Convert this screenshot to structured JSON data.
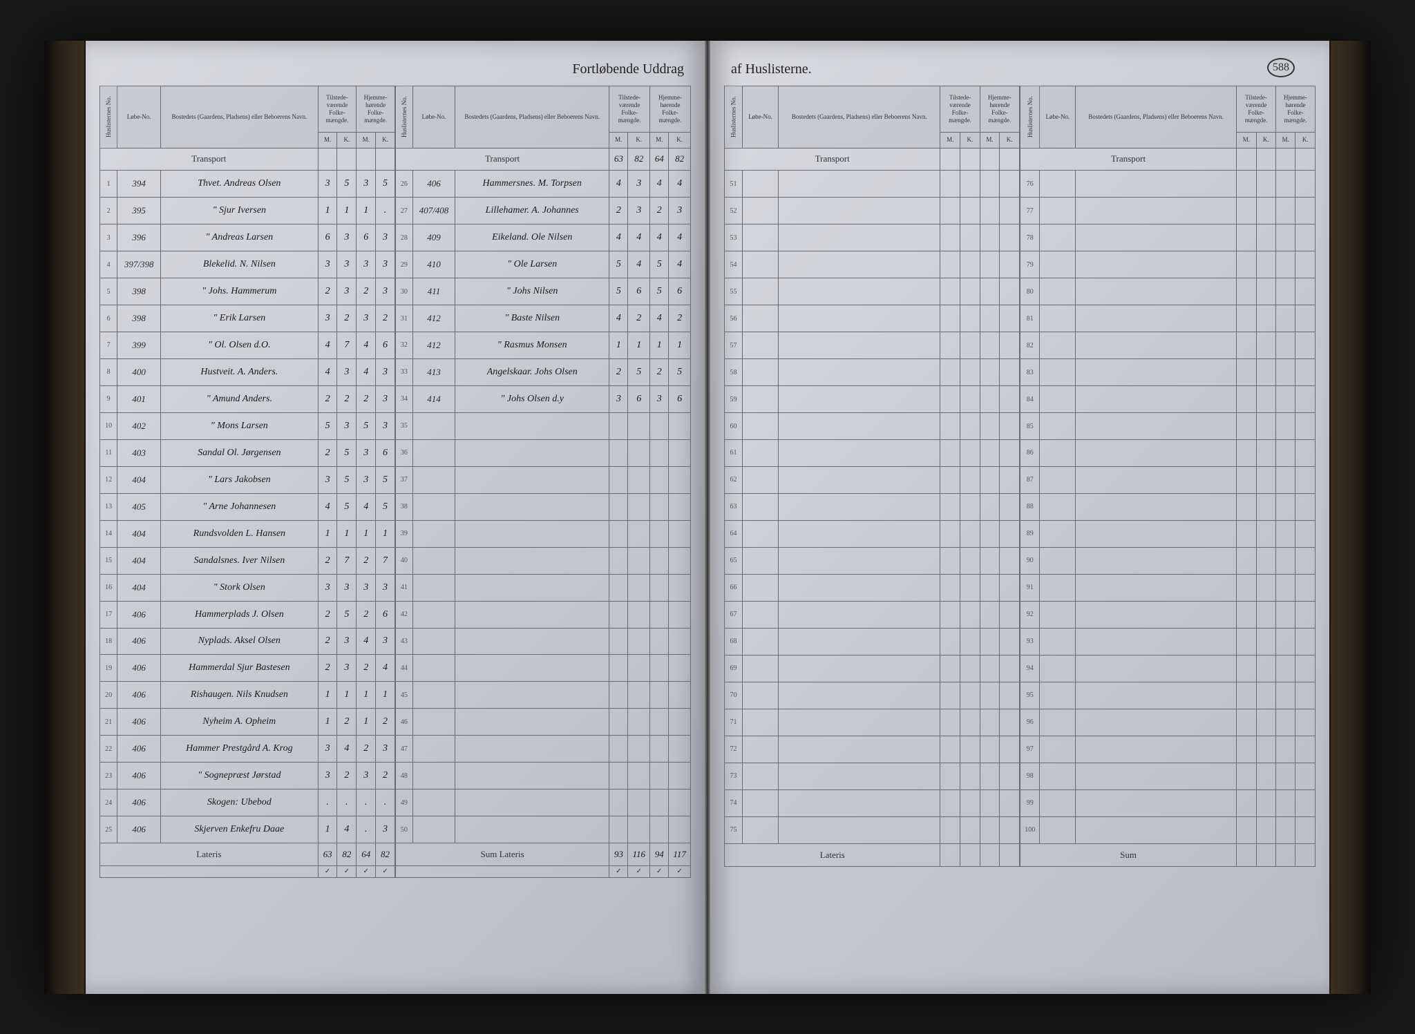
{
  "page_number": "588",
  "header_left": "Fortløbende Uddrag",
  "header_right": "af Huslisterne.",
  "column_headers": {
    "huslisternes": "Huslisternes No.",
    "lobe_no": "Løbe-No.",
    "bostedes": "Bostedets (Gaardens, Pladsens) eller Beboerens Navn.",
    "tilstede": "Tilstede-værende Folke-mængde.",
    "hjemme": "Hjemme-hørende Folke-mængde.",
    "m": "M.",
    "k": "K."
  },
  "transport_label": "Transport",
  "lateris_label": "Lateris",
  "sum_label": "Sum",
  "left_block1": {
    "transport": [
      "",
      "",
      "",
      ""
    ],
    "rows": [
      {
        "n": "1",
        "lobe": "394",
        "place": "Thvet. Andreas Olsen",
        "m1": "3",
        "k1": "5",
        "m2": "3",
        "k2": "5"
      },
      {
        "n": "2",
        "lobe": "395",
        "place": "\"   Sjur Iversen",
        "m1": "1",
        "k1": "1",
        "m2": "1",
        "k2": "."
      },
      {
        "n": "3",
        "lobe": "396",
        "place": "\"   Andreas Larsen",
        "m1": "6",
        "k1": "3",
        "m2": "6",
        "k2": "3"
      },
      {
        "n": "4",
        "lobe": "397/398",
        "place": "Blekelid.  N. Nilsen",
        "m1": "3",
        "k1": "3",
        "m2": "3",
        "k2": "3"
      },
      {
        "n": "5",
        "lobe": "398",
        "place": "\"   Johs. Hammerum",
        "m1": "2",
        "k1": "3",
        "m2": "2",
        "k2": "3"
      },
      {
        "n": "6",
        "lobe": "398",
        "place": "\"   Erik Larsen",
        "m1": "3",
        "k1": "2",
        "m2": "3",
        "k2": "2"
      },
      {
        "n": "7",
        "lobe": "399",
        "place": "\"   Ol. Olsen d.O.",
        "m1": "4",
        "k1": "7",
        "m2": "4",
        "k2": "6"
      },
      {
        "n": "8",
        "lobe": "400",
        "place": "Hustveit.  A. Anders.",
        "m1": "4",
        "k1": "3",
        "m2": "4",
        "k2": "3"
      },
      {
        "n": "9",
        "lobe": "401",
        "place": "\"   Amund Anders.",
        "m1": "2",
        "k1": "2",
        "m2": "2",
        "k2": "3"
      },
      {
        "n": "10",
        "lobe": "402",
        "place": "\"   Mons Larsen",
        "m1": "5",
        "k1": "3",
        "m2": "5",
        "k2": "3"
      },
      {
        "n": "11",
        "lobe": "403",
        "place": "Sandal  Ol. Jørgensen",
        "m1": "2",
        "k1": "5",
        "m2": "3",
        "k2": "6"
      },
      {
        "n": "12",
        "lobe": "404",
        "place": "\"   Lars Jakobsen",
        "m1": "3",
        "k1": "5",
        "m2": "3",
        "k2": "5"
      },
      {
        "n": "13",
        "lobe": "405",
        "place": "\"   Arne Johannesen",
        "m1": "4",
        "k1": "5",
        "m2": "4",
        "k2": "5"
      },
      {
        "n": "14",
        "lobe": "404",
        "place": "Rundsvolden L. Hansen",
        "m1": "1",
        "k1": "1",
        "m2": "1",
        "k2": "1"
      },
      {
        "n": "15",
        "lobe": "404",
        "place": "Sandalsnes. Iver Nilsen",
        "m1": "2",
        "k1": "7",
        "m2": "2",
        "k2": "7"
      },
      {
        "n": "16",
        "lobe": "404",
        "place": "\"   Stork Olsen",
        "m1": "3",
        "k1": "3",
        "m2": "3",
        "k2": "3"
      },
      {
        "n": "17",
        "lobe": "406",
        "place": "Hammerplads J. Olsen",
        "m1": "2",
        "k1": "5",
        "m2": "2",
        "k2": "6"
      },
      {
        "n": "18",
        "lobe": "406",
        "place": "Nyplads. Aksel Olsen",
        "m1": "2",
        "k1": "3",
        "m2": "4",
        "k2": "3"
      },
      {
        "n": "19",
        "lobe": "406",
        "place": "Hammerdal Sjur Bastesen",
        "m1": "2",
        "k1": "3",
        "m2": "2",
        "k2": "4"
      },
      {
        "n": "20",
        "lobe": "406",
        "place": "Rishaugen. Nils Knudsen",
        "m1": "1",
        "k1": "1",
        "m2": "1",
        "k2": "1"
      },
      {
        "n": "21",
        "lobe": "406",
        "place": "Nyheim A. Opheim",
        "m1": "1",
        "k1": "2",
        "m2": "1",
        "k2": "2"
      },
      {
        "n": "22",
        "lobe": "406",
        "place": "Hammer Prestgård A. Krog",
        "m1": "3",
        "k1": "4",
        "m2": "2",
        "k2": "3"
      },
      {
        "n": "23",
        "lobe": "406",
        "place": "\"   Sognepræst Jørstad",
        "m1": "3",
        "k1": "2",
        "m2": "3",
        "k2": "2"
      },
      {
        "n": "24",
        "lobe": "406",
        "place": "Skogen: Ubebod",
        "m1": ".",
        "k1": ".",
        "m2": ".",
        "k2": "."
      },
      {
        "n": "25",
        "lobe": "406",
        "place": "Skjerven Enkefru Daae",
        "m1": "1",
        "k1": "4",
        "m2": ".",
        "k2": "3"
      }
    ],
    "lateris": [
      "63",
      "82",
      "64",
      "82"
    ]
  },
  "left_block2": {
    "transport": [
      "63",
      "82",
      "64",
      "82"
    ],
    "rows": [
      {
        "n": "26",
        "lobe": "406",
        "place": "Hammersnes. M. Torpsen",
        "m1": "4",
        "k1": "3",
        "m2": "4",
        "k2": "4"
      },
      {
        "n": "27",
        "lobe": "407/408",
        "place": "Lillehamer. A. Johannes",
        "m1": "2",
        "k1": "3",
        "m2": "2",
        "k2": "3"
      },
      {
        "n": "28",
        "lobe": "409",
        "place": "Eikeland. Ole Nilsen",
        "m1": "4",
        "k1": "4",
        "m2": "4",
        "k2": "4"
      },
      {
        "n": "29",
        "lobe": "410",
        "place": "\"   Ole Larsen",
        "m1": "5",
        "k1": "4",
        "m2": "5",
        "k2": "4"
      },
      {
        "n": "30",
        "lobe": "411",
        "place": "\"   Johs Nilsen",
        "m1": "5",
        "k1": "6",
        "m2": "5",
        "k2": "6"
      },
      {
        "n": "31",
        "lobe": "412",
        "place": "\"   Baste Nilsen",
        "m1": "4",
        "k1": "2",
        "m2": "4",
        "k2": "2"
      },
      {
        "n": "32",
        "lobe": "412",
        "place": "\"   Rasmus Monsen",
        "m1": "1",
        "k1": "1",
        "m2": "1",
        "k2": "1"
      },
      {
        "n": "33",
        "lobe": "413",
        "place": "Angelskaar. Johs Olsen",
        "m1": "2",
        "k1": "5",
        "m2": "2",
        "k2": "5"
      },
      {
        "n": "34",
        "lobe": "414",
        "place": "\"   Johs Olsen d.y",
        "m1": "3",
        "k1": "6",
        "m2": "3",
        "k2": "6"
      },
      {
        "n": "35",
        "lobe": "",
        "place": "",
        "m1": "",
        "k1": "",
        "m2": "",
        "k2": ""
      },
      {
        "n": "36",
        "lobe": "",
        "place": "",
        "m1": "",
        "k1": "",
        "m2": "",
        "k2": ""
      },
      {
        "n": "37",
        "lobe": "",
        "place": "",
        "m1": "",
        "k1": "",
        "m2": "",
        "k2": ""
      },
      {
        "n": "38",
        "lobe": "",
        "place": "",
        "m1": "",
        "k1": "",
        "m2": "",
        "k2": ""
      },
      {
        "n": "39",
        "lobe": "",
        "place": "",
        "m1": "",
        "k1": "",
        "m2": "",
        "k2": ""
      },
      {
        "n": "40",
        "lobe": "",
        "place": "",
        "m1": "",
        "k1": "",
        "m2": "",
        "k2": ""
      },
      {
        "n": "41",
        "lobe": "",
        "place": "",
        "m1": "",
        "k1": "",
        "m2": "",
        "k2": ""
      },
      {
        "n": "42",
        "lobe": "",
        "place": "",
        "m1": "",
        "k1": "",
        "m2": "",
        "k2": ""
      },
      {
        "n": "43",
        "lobe": "",
        "place": "",
        "m1": "",
        "k1": "",
        "m2": "",
        "k2": ""
      },
      {
        "n": "44",
        "lobe": "",
        "place": "",
        "m1": "",
        "k1": "",
        "m2": "",
        "k2": ""
      },
      {
        "n": "45",
        "lobe": "",
        "place": "",
        "m1": "",
        "k1": "",
        "m2": "",
        "k2": ""
      },
      {
        "n": "46",
        "lobe": "",
        "place": "",
        "m1": "",
        "k1": "",
        "m2": "",
        "k2": ""
      },
      {
        "n": "47",
        "lobe": "",
        "place": "",
        "m1": "",
        "k1": "",
        "m2": "",
        "k2": ""
      },
      {
        "n": "48",
        "lobe": "",
        "place": "",
        "m1": "",
        "k1": "",
        "m2": "",
        "k2": ""
      },
      {
        "n": "49",
        "lobe": "",
        "place": "",
        "m1": "",
        "k1": "",
        "m2": "",
        "k2": ""
      },
      {
        "n": "50",
        "lobe": "",
        "place": "",
        "m1": "",
        "k1": "",
        "m2": "",
        "k2": ""
      }
    ],
    "lateris_label_override": "Sum Lateris",
    "lateris": [
      "93",
      "116",
      "94",
      "117"
    ]
  },
  "right_block1": {
    "rows_start": 51,
    "rows_end": 75
  },
  "right_block2": {
    "rows_start": 76,
    "rows_end": 100
  }
}
